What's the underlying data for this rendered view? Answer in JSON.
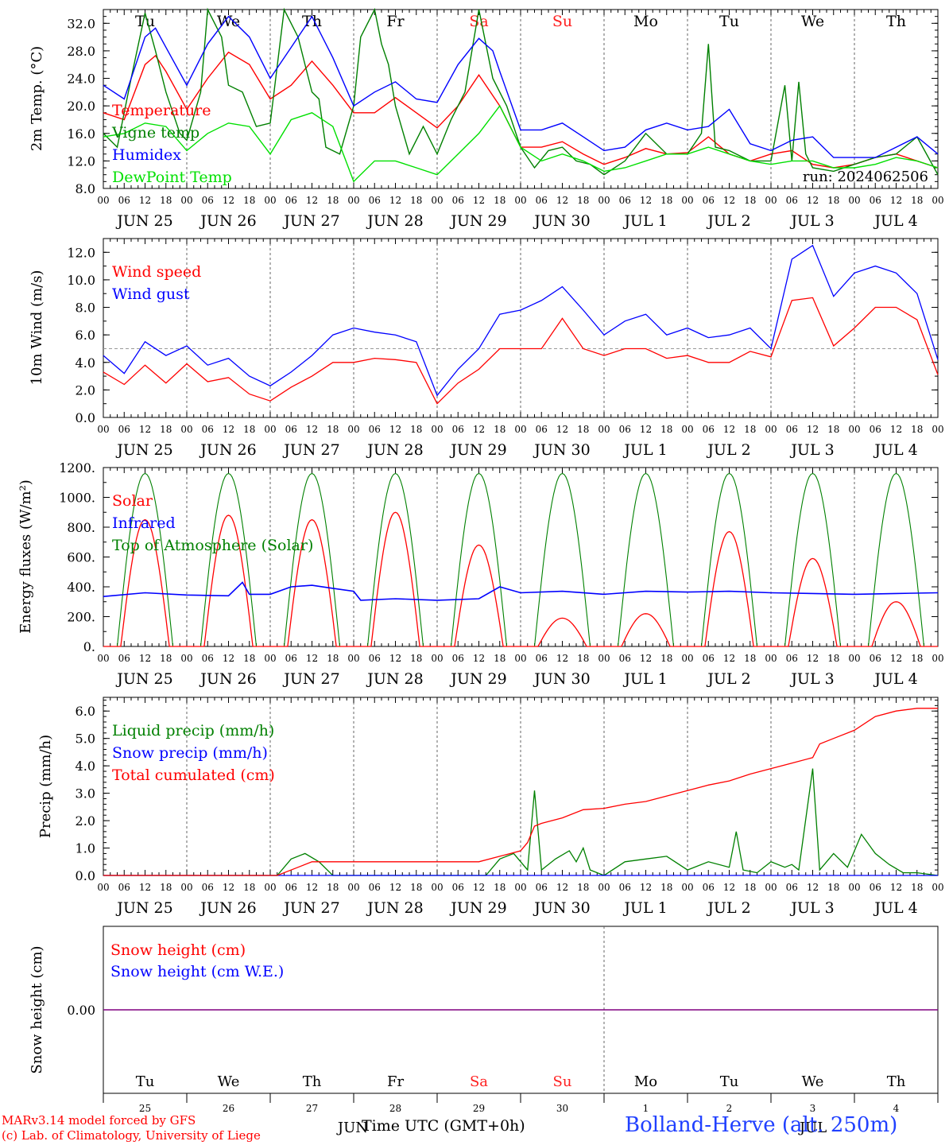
{
  "days_top": [
    "Tu",
    "We",
    "Th",
    "Fr",
    "Sa",
    "Su",
    "Mo",
    "Tu",
    "We",
    "Th"
  ],
  "weekend_color": "#ff2020",
  "weekend_days": [
    "Sa",
    "Su"
  ],
  "hour_labels": [
    "00",
    "06",
    "12",
    "18"
  ],
  "final_hour_label": "00",
  "date_labels": [
    "JUN 25",
    "JUN 26",
    "JUN 27",
    "JUN 28",
    "JUN 29",
    "JUN 30",
    "JUL  1",
    "JUL  2",
    "JUL  3",
    "JUL  4"
  ],
  "bottom_day_numbers": [
    "25",
    "26",
    "27",
    "28",
    "29",
    "30",
    "1",
    "2",
    "3",
    "4"
  ],
  "bottom_months": [
    "JUN",
    "JUL"
  ],
  "xlabel": "Time UTC (GMT+0h)",
  "credit_line1": "MARv3.14 model forced by GFS",
  "credit_line2": "(c) Lab. of Climatology, University of Liege",
  "location": "Bolland-Herve (alt. 250m)",
  "run_label": "run: 2024062506",
  "colors": {
    "red": "#ff0000",
    "green": "#008000",
    "blue": "#0000ff",
    "lightgreen": "#00e000",
    "purple": "#800080",
    "grid": "#666666"
  },
  "chart_data": [
    {
      "type": "line",
      "ylabel": "2m Temp. (°C)",
      "ylim": [
        8,
        34
      ],
      "yticks": [
        "8.0",
        "12.0",
        "16.0",
        "20.0",
        "24.0",
        "28.0",
        "32.0"
      ],
      "legend_position": "left",
      "x_unit": "hours since JUN 25 00 UTC",
      "series": [
        {
          "name": "Temperature",
          "color": "red",
          "x": [
            0,
            6,
            12,
            15,
            18,
            24,
            30,
            36,
            42,
            48,
            54,
            60,
            66,
            72,
            78,
            84,
            90,
            96,
            102,
            108,
            114,
            120,
            126,
            132,
            138,
            144,
            150,
            156,
            162,
            168,
            174,
            180,
            186,
            192,
            198,
            204,
            210,
            216,
            222,
            228,
            234,
            240
          ],
          "y": [
            19,
            18,
            26,
            27.3,
            25,
            19.5,
            24,
            27.8,
            26,
            21,
            23,
            26.5,
            23,
            19,
            19,
            21.2,
            19,
            16.8,
            20,
            24.5,
            20,
            14,
            14,
            14.8,
            13,
            11.5,
            12.5,
            13.8,
            13,
            13.2,
            15.5,
            13,
            12,
            13,
            13.5,
            11.5,
            11,
            11.5,
            12.5,
            13,
            12,
            11
          ]
        },
        {
          "name": "Vigne temp",
          "color": "green",
          "x": [
            0,
            4,
            8,
            12,
            15,
            18,
            22,
            24,
            28,
            30,
            34,
            36,
            40,
            44,
            48,
            52,
            56,
            60,
            62,
            64,
            68,
            72,
            74,
            78,
            80,
            82,
            84,
            88,
            92,
            96,
            100,
            104,
            108,
            112,
            116,
            120,
            124,
            128,
            132,
            136,
            140,
            144,
            150,
            156,
            162,
            168,
            172,
            174,
            176,
            180,
            186,
            192,
            196,
            198,
            200,
            202,
            204,
            210,
            216,
            222,
            228,
            234,
            240
          ],
          "y": [
            16,
            14,
            24,
            33.5,
            28,
            22,
            16,
            15,
            22,
            34,
            30,
            23,
            22,
            17,
            17.5,
            34,
            30,
            22,
            21,
            14,
            13,
            20,
            30,
            34,
            29,
            26,
            20,
            13,
            17,
            13,
            18,
            22,
            34,
            24,
            20,
            14,
            11,
            13.5,
            14,
            12,
            11.5,
            10,
            12,
            16,
            13,
            13,
            16,
            29,
            14,
            13.5,
            12,
            12,
            23,
            12,
            23.5,
            13,
            11,
            10.5,
            11.5,
            12.5,
            13,
            15.5,
            10
          ]
        },
        {
          "name": "Humidex",
          "color": "blue",
          "x": [
            0,
            6,
            12,
            15,
            18,
            24,
            30,
            36,
            42,
            48,
            54,
            60,
            66,
            72,
            78,
            84,
            90,
            96,
            102,
            108,
            112,
            114,
            120,
            126,
            132,
            138,
            144,
            150,
            156,
            162,
            168,
            174,
            180,
            186,
            192,
            198,
            204,
            210,
            216,
            222,
            228,
            234,
            240
          ],
          "y": [
            23,
            21,
            30,
            31.3,
            28.5,
            23,
            29,
            33,
            30,
            24,
            28.5,
            33,
            27,
            20,
            22,
            23.5,
            21,
            20.5,
            26,
            29.8,
            28,
            25,
            16.5,
            16.5,
            17.5,
            15.5,
            13.5,
            14,
            16.5,
            17.5,
            16.5,
            17,
            19.5,
            14.5,
            13.5,
            15,
            15.5,
            12.5,
            12.5,
            12.5,
            14,
            15.5,
            13
          ]
        },
        {
          "name": "DewPoint Temp",
          "color": "lightgreen",
          "x": [
            0,
            6,
            12,
            18,
            24,
            30,
            36,
            42,
            48,
            54,
            60,
            66,
            72,
            78,
            84,
            90,
            96,
            102,
            108,
            114,
            120,
            126,
            132,
            138,
            144,
            150,
            156,
            162,
            168,
            174,
            180,
            186,
            192,
            198,
            204,
            210,
            216,
            222,
            228,
            234,
            240
          ],
          "y": [
            15.5,
            16,
            17.5,
            17,
            13.5,
            16,
            17.5,
            17,
            13,
            18,
            19,
            17,
            9,
            12,
            12,
            11,
            10,
            13,
            16,
            20,
            14,
            12,
            13,
            12,
            10.5,
            11,
            12,
            13,
            13,
            14,
            13,
            12,
            11.5,
            12,
            12,
            11,
            11,
            11.5,
            12.5,
            12,
            11
          ]
        }
      ]
    },
    {
      "type": "line",
      "ylabel": "10m Wind (m/s)",
      "ylim": [
        0,
        13
      ],
      "yticks": [
        "0.0",
        "2.0",
        "4.0",
        "6.0",
        "8.0",
        "10.0",
        "12.0"
      ],
      "reference_line": 5.0,
      "legend_position": "left",
      "x_unit": "hours since JUN 25 00 UTC",
      "series": [
        {
          "name": "Wind speed",
          "color": "red",
          "x": [
            0,
            6,
            12,
            18,
            24,
            30,
            36,
            42,
            48,
            54,
            60,
            66,
            72,
            78,
            84,
            90,
            96,
            102,
            108,
            114,
            120,
            126,
            132,
            138,
            144,
            150,
            156,
            162,
            168,
            174,
            180,
            186,
            192,
            198,
            204,
            210,
            216,
            222,
            228,
            234,
            240
          ],
          "y": [
            3.3,
            2.4,
            3.8,
            2.5,
            3.9,
            2.6,
            2.9,
            1.7,
            1.2,
            2.2,
            3,
            4,
            4,
            4.3,
            4.2,
            4,
            1,
            2.5,
            3.5,
            5,
            5,
            5,
            7.2,
            5,
            4.5,
            5,
            5,
            4.3,
            4.5,
            4,
            4,
            4.8,
            4.4,
            8.5,
            8.7,
            5.2,
            6.5,
            8,
            8,
            7.1,
            3.1
          ]
        },
        {
          "name": "Wind gust",
          "color": "blue",
          "x": [
            0,
            6,
            12,
            18,
            24,
            30,
            36,
            42,
            48,
            54,
            60,
            66,
            72,
            78,
            84,
            90,
            96,
            102,
            108,
            114,
            120,
            126,
            132,
            138,
            144,
            150,
            156,
            162,
            168,
            174,
            180,
            186,
            192,
            198,
            204,
            210,
            216,
            222,
            228,
            234,
            240
          ],
          "y": [
            4.5,
            3.2,
            5.5,
            4.5,
            5.2,
            3.8,
            4.3,
            3,
            2.3,
            3.3,
            4.5,
            6,
            6.5,
            6.2,
            6,
            5.5,
            1.6,
            3.5,
            5,
            7.5,
            7.8,
            8.5,
            9.5,
            7.8,
            6,
            7,
            7.5,
            6,
            6.5,
            5.8,
            6,
            6.5,
            5,
            11.5,
            12.5,
            8.8,
            10.5,
            11,
            10.5,
            9,
            4.2
          ]
        }
      ]
    },
    {
      "type": "line",
      "ylabel": "Energy fluxes (W/m²)",
      "ylim": [
        0,
        1200
      ],
      "yticks": [
        "0.",
        "200.",
        "400.",
        "600.",
        "800.",
        "1000.",
        "1200."
      ],
      "legend_position": "left",
      "x_unit": "hours since JUN 25 00 UTC",
      "series": [
        {
          "name": "Solar",
          "color": "red",
          "daily_peak": [
            850,
            880,
            850,
            900,
            680,
            190,
            220,
            770,
            590,
            300
          ]
        },
        {
          "name": "Infrared",
          "color": "blue",
          "x": [
            0,
            12,
            24,
            36,
            40,
            42,
            48,
            54,
            60,
            66,
            72,
            74,
            84,
            96,
            108,
            114,
            120,
            132,
            144,
            156,
            168,
            180,
            192,
            204,
            216,
            228,
            240
          ],
          "y": [
            335,
            360,
            345,
            340,
            430,
            350,
            350,
            400,
            410,
            390,
            370,
            310,
            320,
            310,
            320,
            400,
            360,
            370,
            350,
            370,
            365,
            370,
            360,
            355,
            350,
            355,
            360
          ]
        },
        {
          "name": "Top of Atmosphere (Solar)",
          "color": "green",
          "daily_peak": [
            1160,
            1160,
            1160,
            1160,
            1160,
            1160,
            1160,
            1160,
            1160,
            1160
          ],
          "daylight_hours": [
            4,
            20
          ]
        }
      ]
    },
    {
      "type": "line",
      "ylabel": "Precip (mm/h)",
      "ylim": [
        0,
        6.5
      ],
      "yticks": [
        "0.0",
        "1.0",
        "2.0",
        "3.0",
        "4.0",
        "5.0",
        "6.0"
      ],
      "legend_position": "left",
      "x_unit": "hours since JUN 25 00 UTC",
      "series": [
        {
          "name": "Liquid precip (mm/h)",
          "color": "green",
          "x": [
            0,
            50,
            54,
            58,
            62,
            66,
            70,
            110,
            114,
            118,
            122,
            124,
            126,
            130,
            134,
            136,
            138,
            140,
            144,
            150,
            156,
            162,
            168,
            174,
            180,
            182,
            184,
            188,
            192,
            196,
            198,
            200,
            204,
            206,
            210,
            214,
            218,
            222,
            226,
            230,
            234,
            240
          ],
          "y": [
            0,
            0,
            0.6,
            0.8,
            0.5,
            0,
            0,
            0,
            0.6,
            0.8,
            0.2,
            3.1,
            0.2,
            0.6,
            0.9,
            0.5,
            1.0,
            0.2,
            0,
            0.5,
            0.6,
            0.7,
            0.2,
            0.5,
            0.3,
            1.6,
            0.2,
            0.1,
            0.5,
            0.3,
            0.4,
            0.2,
            3.9,
            0.2,
            0.8,
            0.3,
            1.5,
            0.8,
            0.4,
            0.1,
            0.1,
            0
          ]
        },
        {
          "name": "Snow precip (mm/h)",
          "color": "blue",
          "x": [
            0,
            240
          ],
          "y": [
            0,
            0
          ]
        },
        {
          "name": "Total cumulated (cm)",
          "color": "red",
          "x": [
            0,
            50,
            56,
            60,
            66,
            72,
            96,
            108,
            114,
            120,
            122,
            124,
            126,
            132,
            138,
            144,
            150,
            156,
            162,
            168,
            174,
            180,
            186,
            192,
            198,
            204,
            206,
            210,
            216,
            222,
            228,
            234,
            240
          ],
          "y": [
            0,
            0,
            0.3,
            0.5,
            0.5,
            0.5,
            0.5,
            0.5,
            0.7,
            0.9,
            1.2,
            1.8,
            1.9,
            2.1,
            2.4,
            2.45,
            2.6,
            2.7,
            2.9,
            3.1,
            3.3,
            3.45,
            3.7,
            3.9,
            4.1,
            4.3,
            4.8,
            5.0,
            5.3,
            5.8,
            6.0,
            6.1,
            6.1
          ]
        }
      ]
    },
    {
      "type": "line",
      "ylabel": "Snow height (cm)",
      "yticks": [
        "0.00"
      ],
      "legend_position": "left",
      "x_unit": "hours since JUN 25 00 UTC",
      "series": [
        {
          "name": "Snow height (cm)",
          "color": "red",
          "x": [
            0,
            240
          ],
          "y": [
            0,
            0
          ]
        },
        {
          "name": "Snow height (cm W.E.)",
          "color": "blue",
          "x": [
            0,
            240
          ],
          "y": [
            0,
            0
          ]
        }
      ]
    }
  ]
}
